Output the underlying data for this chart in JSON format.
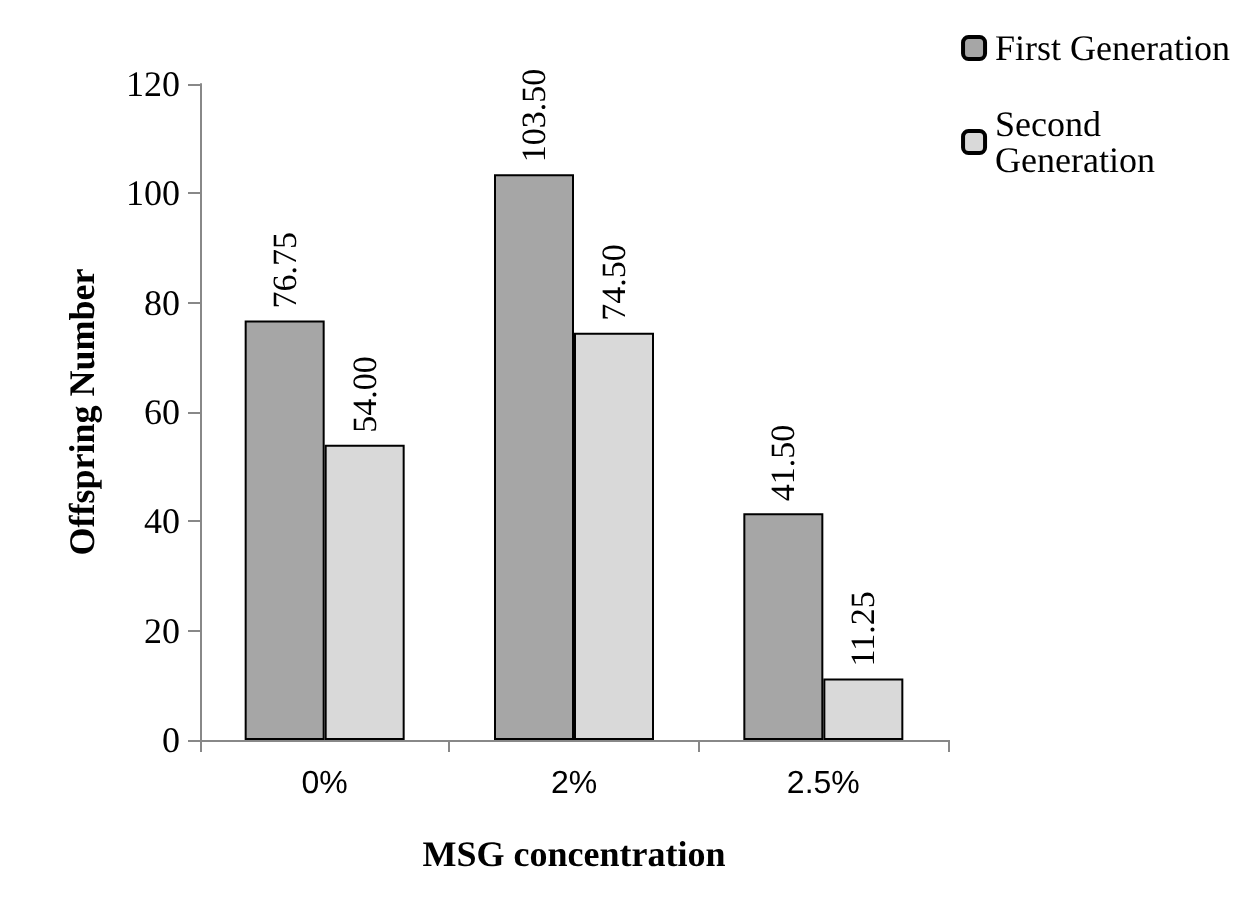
{
  "chart_data": {
    "type": "bar",
    "xlabel": "MSG concentration",
    "ylabel": "Offspring Number",
    "categories": [
      "0%",
      "2%",
      "2.5%"
    ],
    "series": [
      {
        "name": "First Generation",
        "color": "#a6a6a6",
        "values": [
          76.75,
          103.5,
          41.5
        ],
        "value_labels": [
          "76.75",
          "103.50",
          "41.50"
        ]
      },
      {
        "name": "Second Generation",
        "color": "#d9d9d9",
        "values": [
          54,
          74.5,
          11.25
        ],
        "value_labels": [
          "54.00",
          "74.50",
          "11.25"
        ]
      }
    ],
    "ylim": [
      0,
      120
    ],
    "yticks": [
      0,
      20,
      40,
      60,
      80,
      100,
      120
    ],
    "grid": false,
    "legend": "right"
  }
}
